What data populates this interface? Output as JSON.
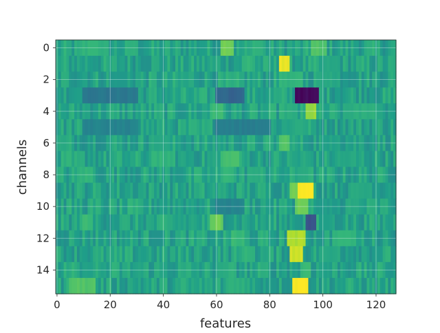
{
  "chart_data": {
    "type": "heatmap",
    "colormap": "viridis",
    "xlabel": "features",
    "ylabel": "channels",
    "xlim": [
      -0.5,
      127.5
    ],
    "ylim": [
      15.5,
      -0.5
    ],
    "x_ticks": [
      0,
      20,
      40,
      60,
      80,
      100,
      120
    ],
    "y_ticks": [
      0,
      2,
      4,
      6,
      8,
      10,
      12,
      14
    ],
    "grid": true,
    "rows": 16,
    "cols": 128,
    "value_range": [
      -1,
      1
    ],
    "baseline": 0.15,
    "row_features": [
      {
        "row": 0,
        "cells": [
          [
            10,
            16,
            0.3
          ],
          [
            27,
            29,
            0.25
          ],
          [
            62,
            66,
            0.55
          ],
          [
            74,
            77,
            0.3
          ],
          [
            96,
            101,
            0.45
          ]
        ]
      },
      {
        "row": 1,
        "cells": [
          [
            84,
            87,
            0.95
          ],
          [
            70,
            74,
            0.3
          ],
          [
            100,
            104,
            0.2
          ]
        ]
      },
      {
        "row": 2,
        "cells": [
          [
            84,
            92,
            0.3
          ],
          [
            98,
            104,
            0.2
          ],
          [
            20,
            26,
            0.05
          ]
        ]
      },
      {
        "row": 3,
        "cells": [
          [
            90,
            98,
            -0.95
          ],
          [
            60,
            70,
            -0.35
          ],
          [
            10,
            30,
            -0.2
          ]
        ]
      },
      {
        "row": 4,
        "cells": [
          [
            94,
            97,
            0.7
          ],
          [
            85,
            90,
            0.25
          ],
          [
            58,
            62,
            0.35
          ],
          [
            108,
            120,
            0.25
          ]
        ]
      },
      {
        "row": 5,
        "cells": [
          [
            88,
            93,
            0.2
          ],
          [
            10,
            30,
            -0.1
          ],
          [
            60,
            80,
            -0.15
          ]
        ]
      },
      {
        "row": 6,
        "cells": [
          [
            84,
            87,
            0.45
          ],
          [
            35,
            42,
            0.2
          ],
          [
            100,
            106,
            0.15
          ]
        ]
      },
      {
        "row": 7,
        "cells": [
          [
            62,
            68,
            0.4
          ],
          [
            36,
            43,
            0.3
          ],
          [
            105,
            112,
            0.2
          ]
        ]
      },
      {
        "row": 8,
        "cells": [
          [
            8,
            13,
            0.3
          ],
          [
            62,
            66,
            0.3
          ],
          [
            72,
            78,
            0.25
          ],
          [
            90,
            94,
            0.2
          ]
        ]
      },
      {
        "row": 9,
        "cells": [
          [
            90,
            96,
            1.0
          ],
          [
            88,
            90,
            0.55
          ],
          [
            110,
            118,
            0.2
          ]
        ]
      },
      {
        "row": 10,
        "cells": [
          [
            90,
            94,
            0.55
          ],
          [
            60,
            70,
            -0.1
          ],
          [
            98,
            106,
            0.1
          ]
        ]
      },
      {
        "row": 11,
        "cells": [
          [
            58,
            62,
            0.55
          ],
          [
            10,
            13,
            0.35
          ],
          [
            94,
            97,
            -0.5
          ],
          [
            100,
            104,
            0.15
          ]
        ]
      },
      {
        "row": 12,
        "cells": [
          [
            87,
            93,
            0.75
          ],
          [
            66,
            70,
            0.35
          ],
          [
            104,
            112,
            0.3
          ]
        ]
      },
      {
        "row": 13,
        "cells": [
          [
            88,
            92,
            0.85
          ],
          [
            70,
            74,
            0.3
          ],
          [
            100,
            106,
            0.2
          ]
        ]
      },
      {
        "row": 14,
        "cells": [
          [
            92,
            95,
            0.35
          ],
          [
            60,
            64,
            0.2
          ],
          [
            10,
            14,
            0.15
          ]
        ]
      },
      {
        "row": 15,
        "cells": [
          [
            89,
            94,
            1.0
          ],
          [
            5,
            14,
            0.45
          ],
          [
            64,
            70,
            0.25
          ]
        ]
      }
    ]
  }
}
